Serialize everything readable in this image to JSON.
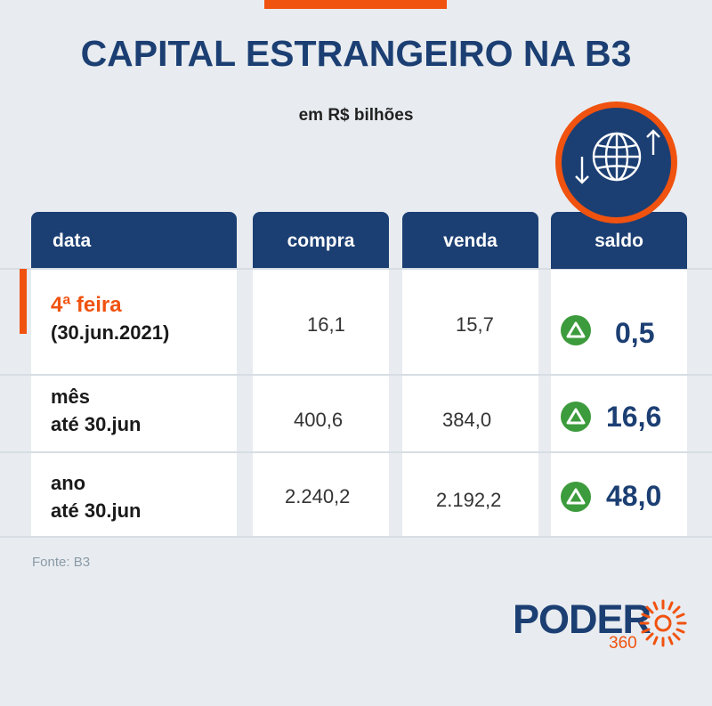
{
  "title": "CAPITAL ESTRANGEIRO NA B3",
  "subtitle": "em R$ bilhões",
  "icon": "globe-arrows-icon",
  "colors": {
    "navy": "#1c3f73",
    "orange": "#f0520f",
    "green": "#3c9b3c",
    "background": "#e8ecf0"
  },
  "table": {
    "headers": {
      "data": "data",
      "compra": "compra",
      "venda": "venda",
      "saldo": "saldo"
    },
    "rows": [
      {
        "label_line1": "4ª feira",
        "label_line2": "(30.jun.2021)",
        "compra": "16,1",
        "venda": "15,7",
        "saldo": "0,5",
        "trend": "up"
      },
      {
        "label_line1": "mês",
        "label_line2": "até 30.jun",
        "compra": "400,6",
        "venda": "384,0",
        "saldo": "16,6",
        "trend": "up"
      },
      {
        "label_line1": "ano",
        "label_line2": "até 30.jun",
        "compra": "2.240,2",
        "venda": "2.192,2",
        "saldo": "48,0",
        "trend": "up"
      }
    ]
  },
  "source": "Fonte: B3",
  "logo": {
    "word": "PODER",
    "number": "360"
  }
}
